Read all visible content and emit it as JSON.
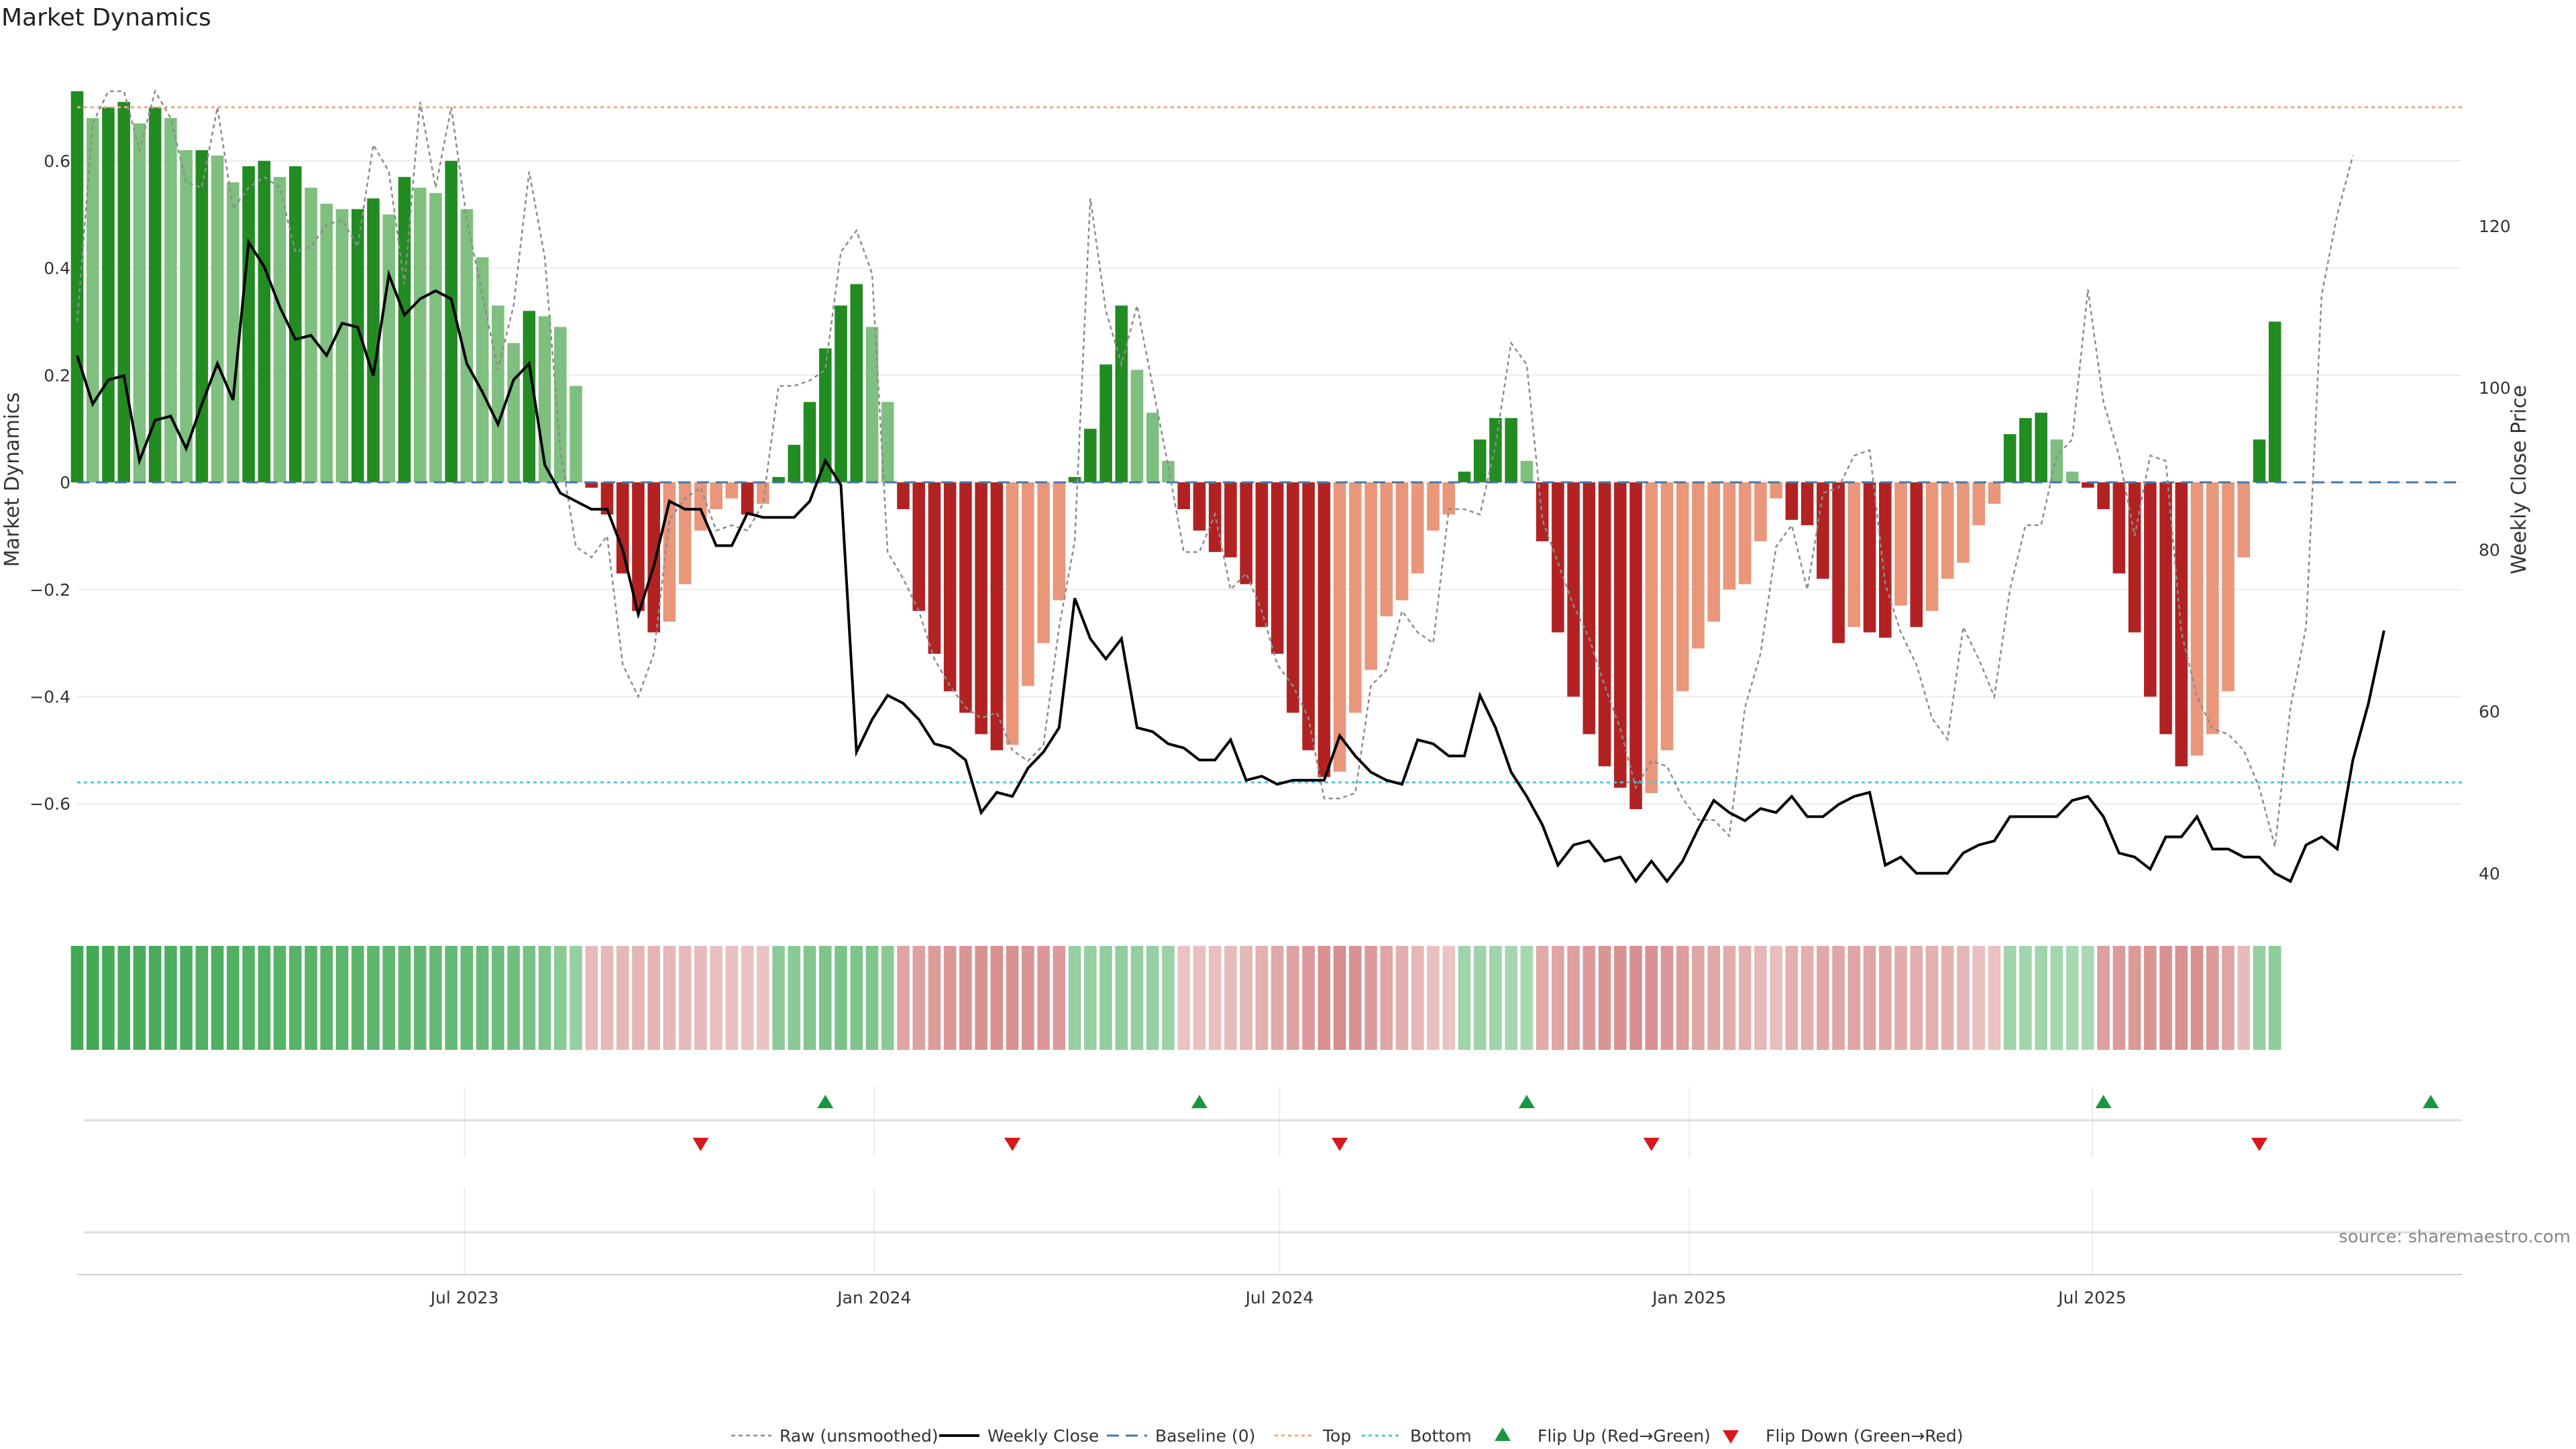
{
  "colors": {
    "up_strong": "#228B22",
    "up_weak": "#7FBF7F",
    "down_strong": "#B22222",
    "down_weak": "#E9967A",
    "raw": "#8c8c8c",
    "close": "#000000",
    "baseline": "#4477aa",
    "top": "#f4a582",
    "bottom": "#4dc8d6",
    "flip_up": "#1a9641",
    "flip_down": "#d7191c"
  },
  "chart_data": {
    "type": "bar",
    "title": "Market Dynamics",
    "ylabel": "Market Dynamics",
    "y2label": "Weekly Close Price",
    "ylim": [
      -0.79,
      0.75
    ],
    "y2lim": [
      36,
      138
    ],
    "yticks": [
      "0.6",
      "0.4",
      "0.2",
      "0",
      "−0.2",
      "−0.4",
      "−0.6"
    ],
    "ytick_values": [
      0.6,
      0.4,
      0.2,
      0,
      -0.2,
      -0.4,
      -0.6
    ],
    "y2ticks": [
      "120",
      "100",
      "80",
      "60",
      "40"
    ],
    "y2tick_values": [
      120,
      100,
      80,
      60,
      40
    ],
    "x_range": [
      "2023-01-08",
      "2025-12-14"
    ],
    "xticks": [
      "Jul 2023",
      "Jan 2024",
      "Jul 2024",
      "Jan 2025",
      "Jul 2025"
    ],
    "xtick_dates": [
      "2023-07-01",
      "2024-01-01",
      "2024-07-01",
      "2025-01-01",
      "2025-07-01"
    ],
    "top_threshold": 0.7,
    "bottom_threshold": -0.56,
    "grid": true,
    "legend_placement": "bottom",
    "weeks_start": "2023-01-08",
    "bars": [
      0.73,
      0.68,
      0.7,
      0.71,
      0.67,
      0.7,
      0.68,
      0.62,
      0.62,
      0.61,
      0.56,
      0.59,
      0.6,
      0.57,
      0.59,
      0.55,
      0.52,
      0.51,
      0.51,
      0.53,
      0.5,
      0.57,
      0.55,
      0.54,
      0.6,
      0.51,
      0.42,
      0.33,
      0.26,
      0.32,
      0.31,
      0.29,
      0.18,
      -0.01,
      -0.06,
      -0.17,
      -0.24,
      -0.28,
      -0.26,
      -0.19,
      -0.09,
      -0.05,
      -0.03,
      -0.06,
      -0.04,
      0.01,
      0.07,
      0.15,
      0.25,
      0.33,
      0.37,
      0.29,
      0.15,
      -0.05,
      -0.24,
      -0.32,
      -0.39,
      -0.43,
      -0.47,
      -0.5,
      -0.49,
      -0.38,
      -0.3,
      -0.22,
      0.01,
      0.1,
      0.22,
      0.33,
      0.21,
      0.13,
      0.04,
      -0.05,
      -0.09,
      -0.13,
      -0.14,
      -0.19,
      -0.27,
      -0.32,
      -0.43,
      -0.5,
      -0.55,
      -0.54,
      -0.43,
      -0.35,
      -0.25,
      -0.22,
      -0.17,
      -0.09,
      -0.06,
      0.02,
      0.08,
      0.12,
      0.12,
      0.04,
      -0.11,
      -0.28,
      -0.4,
      -0.47,
      -0.53,
      -0.57,
      -0.61,
      -0.58,
      -0.5,
      -0.39,
      -0.31,
      -0.26,
      -0.2,
      -0.19,
      -0.11,
      -0.03,
      -0.07,
      -0.08,
      -0.18,
      -0.3,
      -0.27,
      -0.28,
      -0.29,
      -0.23,
      -0.27,
      -0.24,
      -0.18,
      -0.15,
      -0.08,
      -0.04,
      0.09,
      0.12,
      0.13,
      0.08,
      0.02,
      -0.01,
      -0.05,
      -0.17,
      -0.28,
      -0.4,
      -0.47,
      -0.53,
      -0.51,
      -0.47,
      -0.39,
      -0.14,
      0.08,
      0.3
    ],
    "close": [
      104,
      98,
      101,
      101.5,
      91,
      96,
      96.5,
      92.5,
      98,
      103,
      98.5,
      118,
      115,
      110,
      106,
      106.5,
      104,
      108,
      107.5,
      101.5,
      114,
      109,
      111,
      112,
      111,
      103,
      99.5,
      95.5,
      101,
      103,
      90.5,
      87,
      86,
      85,
      85,
      80,
      72,
      78,
      86,
      85,
      85,
      80.5,
      80.5,
      84.5,
      84,
      84,
      84,
      86,
      91,
      88,
      55,
      59,
      62,
      61,
      59,
      56,
      55.5,
      54,
      47.5,
      50,
      49.5,
      53,
      55,
      58,
      74,
      69,
      66.5,
      69,
      58,
      57.5,
      56,
      55.5,
      54,
      54,
      56.5,
      51.5,
      52,
      51,
      51.5,
      51.5,
      51.5,
      57,
      54.5,
      52.5,
      51.5,
      51,
      56.5,
      56,
      54.5,
      54.5,
      62,
      58,
      52.5,
      49.5,
      46,
      41,
      43.5,
      44,
      41.5,
      42,
      39,
      41.5,
      39,
      41.5,
      45.5,
      49,
      47.5,
      46.5,
      48,
      47.5,
      49.5,
      47,
      47,
      48.5,
      49.5,
      50,
      41,
      42,
      40,
      40,
      40,
      42.5,
      43.5,
      44,
      47,
      47,
      47,
      47,
      49,
      49.5,
      47,
      42.5,
      42,
      40.5,
      44.5,
      44.5,
      47,
      43,
      43,
      42,
      42,
      40,
      39,
      43.5,
      44.5,
      43,
      54,
      61,
      70
    ],
    "raw": [
      0.3,
      0.67,
      0.73,
      0.73,
      0.62,
      0.73,
      0.68,
      0.56,
      0.55,
      0.7,
      0.51,
      0.55,
      0.57,
      0.55,
      0.43,
      0.44,
      0.48,
      0.49,
      0.44,
      0.63,
      0.58,
      0.37,
      0.71,
      0.55,
      0.7,
      0.49,
      0.35,
      0.21,
      0.33,
      0.58,
      0.42,
      0.06,
      -0.12,
      -0.14,
      -0.1,
      -0.34,
      -0.4,
      -0.32,
      -0.07,
      -0.03,
      -0.01,
      -0.09,
      -0.08,
      -0.09,
      -0.04,
      0.18,
      0.18,
      0.19,
      0.21,
      0.43,
      0.47,
      0.39,
      -0.13,
      -0.18,
      -0.24,
      -0.33,
      -0.38,
      -0.42,
      -0.44,
      -0.43,
      -0.5,
      -0.52,
      -0.49,
      -0.27,
      -0.11,
      0.53,
      0.32,
      0.22,
      0.33,
      0.18,
      0.03,
      -0.13,
      -0.13,
      -0.06,
      -0.2,
      -0.17,
      -0.24,
      -0.34,
      -0.38,
      -0.44,
      -0.59,
      -0.59,
      -0.58,
      -0.38,
      -0.35,
      -0.24,
      -0.28,
      -0.3,
      -0.05,
      -0.05,
      -0.06,
      0.07,
      0.26,
      0.22,
      -0.07,
      -0.15,
      -0.23,
      -0.29,
      -0.38,
      -0.46,
      -0.57,
      -0.52,
      -0.53,
      -0.59,
      -0.63,
      -0.63,
      -0.66,
      -0.42,
      -0.32,
      -0.12,
      -0.08,
      -0.2,
      -0.02,
      -0.01,
      0.05,
      0.06,
      -0.19,
      -0.28,
      -0.34,
      -0.44,
      -0.48,
      -0.27,
      -0.33,
      -0.4,
      -0.2,
      -0.08,
      -0.08,
      0.05,
      0.08,
      0.36,
      0.15,
      0.05,
      -0.1,
      0.05,
      0.04,
      -0.28,
      -0.4,
      -0.46,
      -0.47,
      -0.5,
      -0.57,
      -0.68,
      -0.42,
      -0.27,
      0.35,
      0.5,
      0.61
    ],
    "heat": [
      1.0,
      1.0,
      0.98,
      0.97,
      0.96,
      0.95,
      0.93,
      0.92,
      0.91,
      0.9,
      0.89,
      0.88,
      0.87,
      0.86,
      0.85,
      0.84,
      0.83,
      0.82,
      0.81,
      0.8,
      0.79,
      0.78,
      0.77,
      0.76,
      0.75,
      0.74,
      0.72,
      0.7,
      0.66,
      0.62,
      0.57,
      0.5,
      0.4,
      -0.3,
      -0.32,
      -0.34,
      -0.36,
      -0.36,
      -0.34,
      -0.32,
      -0.3,
      -0.28,
      -0.26,
      -0.24,
      -0.22,
      0.46,
      0.5,
      0.54,
      0.57,
      0.58,
      0.57,
      0.55,
      0.5,
      -0.5,
      -0.54,
      -0.58,
      -0.62,
      -0.64,
      -0.66,
      -0.67,
      -0.66,
      -0.64,
      -0.62,
      -0.58,
      0.38,
      0.4,
      0.42,
      0.42,
      0.4,
      0.38,
      0.35,
      -0.24,
      -0.26,
      -0.28,
      -0.3,
      -0.34,
      -0.4,
      -0.46,
      -0.52,
      -0.6,
      -0.68,
      -0.7,
      -0.66,
      -0.58,
      -0.5,
      -0.42,
      -0.34,
      -0.26,
      -0.22,
      0.32,
      0.32,
      0.3,
      0.28,
      0.26,
      -0.45,
      -0.5,
      -0.55,
      -0.6,
      -0.64,
      -0.66,
      -0.7,
      -0.68,
      -0.62,
      -0.56,
      -0.5,
      -0.46,
      -0.44,
      -0.4,
      -0.34,
      -0.28,
      -0.4,
      -0.42,
      -0.46,
      -0.48,
      -0.5,
      -0.5,
      -0.46,
      -0.44,
      -0.42,
      -0.4,
      -0.38,
      -0.34,
      -0.28,
      -0.24,
      0.3,
      0.3,
      0.3,
      0.28,
      0.26,
      0.24,
      -0.55,
      -0.58,
      -0.6,
      -0.64,
      -0.66,
      -0.68,
      -0.66,
      -0.6,
      -0.5,
      -0.3,
      0.38,
      0.45
    ],
    "flips_up": [
      "2023-12-10",
      "2024-05-26",
      "2024-10-20",
      "2025-07-06",
      "2025-11-30"
    ],
    "flips_down": [
      "2023-10-15",
      "2024-03-03",
      "2024-07-28",
      "2024-12-15",
      "2025-09-14"
    ],
    "legend": [
      {
        "label": "Raw (unsmoothed)",
        "kind": "raw"
      },
      {
        "label": "Weekly Close",
        "kind": "close"
      },
      {
        "label": "Baseline (0)",
        "kind": "baseline"
      },
      {
        "label": "Top",
        "kind": "top"
      },
      {
        "label": "Bottom",
        "kind": "bottom"
      },
      {
        "label": "Flip Up (Red→Green)",
        "kind": "flip_up"
      },
      {
        "label": "Flip Down (Green→Red)",
        "kind": "flip_down"
      }
    ],
    "source": "source: sharemaestro.com"
  }
}
